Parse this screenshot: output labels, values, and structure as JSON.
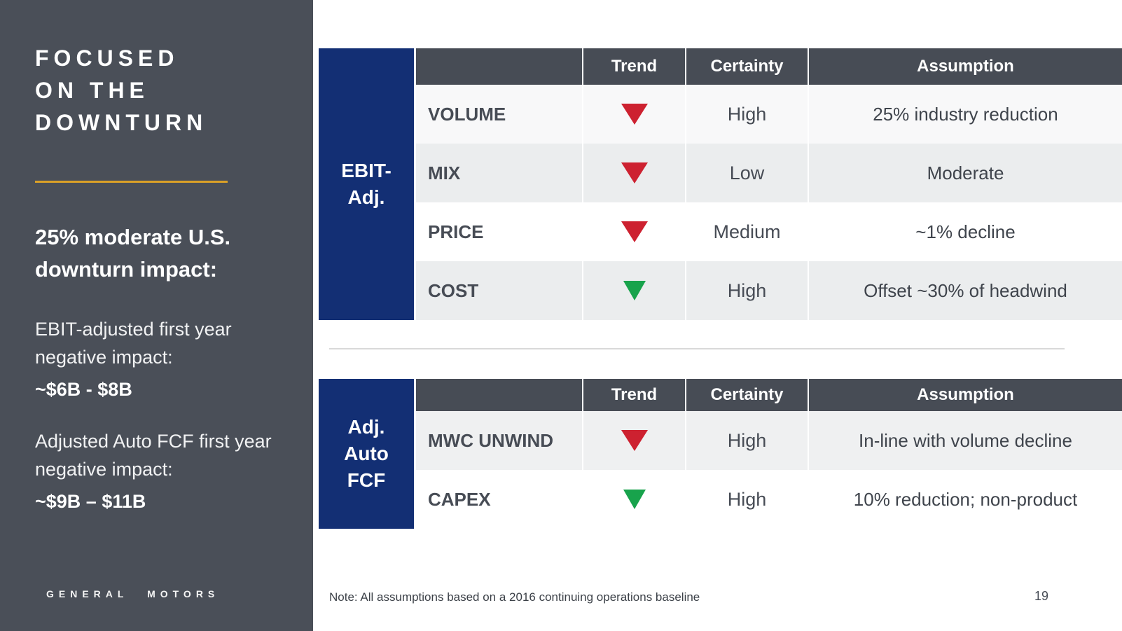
{
  "sidebar": {
    "title": "FOCUSED\nON THE\nDOWNTURN",
    "impact_heading": "25% moderate U.S.\ndownturn impact:",
    "paragraphs": [
      {
        "label": "EBIT-adjusted first year negative impact:",
        "value": "~$6B - $8B"
      },
      {
        "label": "Adjusted Auto FCF first year negative impact:",
        "value": "~$9B – $11B"
      }
    ],
    "wordmark": "GENERAL MOTORS"
  },
  "tables": [
    {
      "label": "EBIT-\nAdj.",
      "columns": [
        "",
        "Trend",
        "Certainty",
        "Assumption"
      ],
      "rows": [
        {
          "name": "VOLUME",
          "trend": "red",
          "certainty": "High",
          "assumption": "25% industry reduction"
        },
        {
          "name": "MIX",
          "trend": "red",
          "certainty": "Low",
          "assumption": "Moderate"
        },
        {
          "name": "PRICE",
          "trend": "red",
          "certainty": "Medium",
          "assumption": "~1% decline"
        },
        {
          "name": "COST",
          "trend": "green",
          "certainty": "High",
          "assumption": "Offset ~30% of headwind"
        }
      ]
    },
    {
      "label": "Adj.\nAuto\nFCF",
      "columns": [
        "",
        "Trend",
        "Certainty",
        "Assumption"
      ],
      "rows": [
        {
          "name": "MWC UNWIND",
          "trend": "red",
          "certainty": "High",
          "assumption": "In-line with volume decline"
        },
        {
          "name": "CAPEX",
          "trend": "green",
          "certainty": "High",
          "assumption": "10% reduction; non-product"
        }
      ]
    }
  ],
  "footer": {
    "note": "Note:  All assumptions based on a 2016 continuing operations baseline",
    "page_number": "19"
  },
  "colors": {
    "sidebar_gray": "#4a4f58",
    "header_gray": "#474c55",
    "brand_navy": "#132f74",
    "accent_gold": "#dba127",
    "trend_down_negative": "#cd2130",
    "trend_down_positive": "#18a34c"
  }
}
